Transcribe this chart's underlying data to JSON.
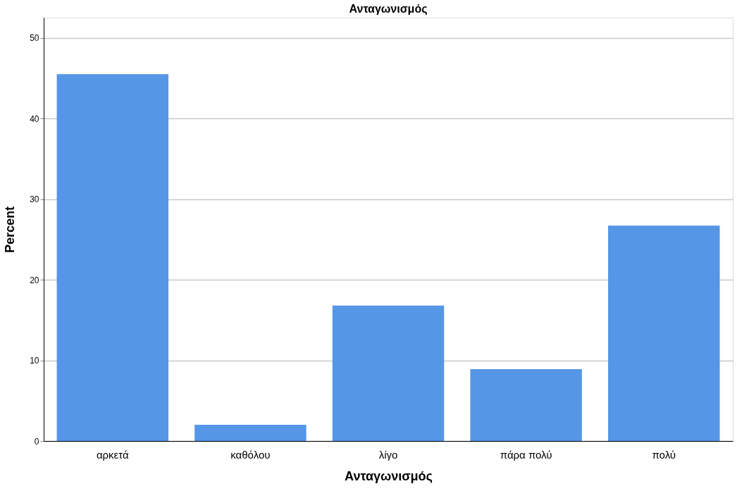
{
  "chart_data": {
    "type": "bar",
    "title": "Ανταγωνισμός",
    "xlabel": "Ανταγωνισμός",
    "ylabel": "Percent",
    "categories": [
      "αρκετά",
      "καθόλου",
      "λίγο",
      "πάρα πολύ",
      "πολύ"
    ],
    "values": [
      45.5,
      2.0,
      16.8,
      8.9,
      26.7
    ],
    "color": "#5596e6",
    "ylim": [
      0,
      52.5
    ],
    "yticks": [
      0,
      10,
      20,
      30,
      40,
      50
    ],
    "grid": "y"
  }
}
